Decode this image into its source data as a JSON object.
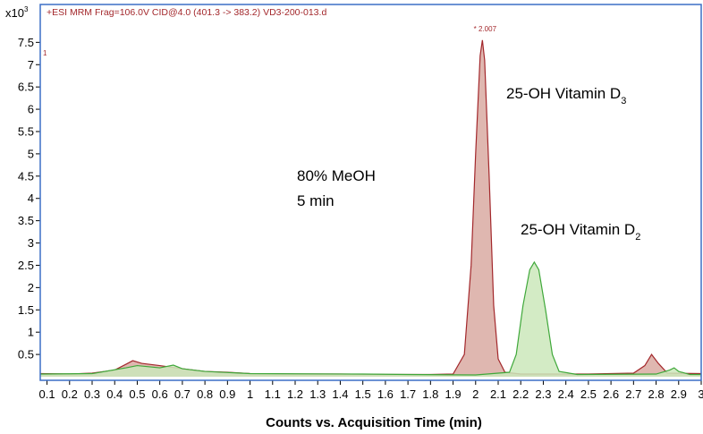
{
  "chart_data": {
    "type": "line",
    "subtitle": "+ESI MRM Frag=106.0V CID@4.0 (401.3 -> 383.2) VD3-200-013.d",
    "trace_label": "1",
    "y_multiplier": {
      "text": "x10",
      "superscript": "3"
    },
    "x_label": "Counts vs. Acquisition Time (min)",
    "peak_label": "* 2.007",
    "annotations": [
      {
        "text": "80% MeOH"
      },
      {
        "text": "5 min"
      },
      {
        "text": "25-OH Vitamin D",
        "subscript": "3"
      },
      {
        "text": "25-OH Vitamin D",
        "subscript": "2"
      }
    ],
    "xlim": [
      0.07,
      3.0
    ],
    "ylim": [
      -0.08,
      8.35
    ],
    "xticks": [
      0.1,
      0.2,
      0.3,
      0.4,
      0.5,
      0.6,
      0.7,
      0.8,
      0.9,
      1,
      1.1,
      1.2,
      1.3,
      1.4,
      1.5,
      1.6,
      1.7,
      1.8,
      1.9,
      2,
      2.1,
      2.2,
      2.3,
      2.4,
      2.5,
      2.6,
      2.7,
      2.8,
      2.9,
      3
    ],
    "yticks": [
      0.5,
      1,
      1.5,
      2,
      2.5,
      3,
      3.5,
      4,
      4.5,
      5,
      5.5,
      6,
      6.5,
      7,
      7.5
    ],
    "frame_color": "#3b6fc6",
    "series": [
      {
        "color": "#a3282c",
        "fill": "#d9aaa2",
        "x": [
          0.07,
          0.2,
          0.3,
          0.4,
          0.45,
          0.48,
          0.52,
          0.6,
          0.7,
          0.8,
          0.9,
          1.0,
          1.2,
          1.4,
          1.6,
          1.8,
          1.9,
          1.95,
          1.98,
          2.0,
          2.02,
          2.03,
          2.04,
          2.06,
          2.08,
          2.1,
          2.13,
          2.2,
          2.5,
          2.7,
          2.75,
          2.78,
          2.81,
          2.85,
          3.0
        ],
        "values": [
          0.07,
          0.06,
          0.08,
          0.15,
          0.28,
          0.36,
          0.3,
          0.25,
          0.18,
          0.12,
          0.1,
          0.07,
          0.06,
          0.06,
          0.05,
          0.05,
          0.06,
          0.5,
          2.5,
          5.0,
          7.2,
          7.55,
          7.1,
          4.5,
          1.6,
          0.4,
          0.1,
          0.06,
          0.06,
          0.08,
          0.25,
          0.5,
          0.3,
          0.08,
          0.07
        ]
      },
      {
        "color": "#3fa83a",
        "fill": "#cbe7bb",
        "x": [
          0.07,
          0.3,
          0.45,
          0.5,
          0.6,
          0.66,
          0.7,
          0.8,
          1.0,
          1.5,
          1.7,
          2.0,
          2.15,
          2.18,
          2.21,
          2.24,
          2.26,
          2.28,
          2.31,
          2.34,
          2.37,
          2.45,
          2.8,
          2.86,
          2.88,
          2.9,
          2.95,
          3.0
        ],
        "values": [
          0.06,
          0.07,
          0.2,
          0.25,
          0.2,
          0.26,
          0.18,
          0.12,
          0.07,
          0.06,
          0.05,
          0.04,
          0.1,
          0.5,
          1.6,
          2.4,
          2.57,
          2.4,
          1.5,
          0.5,
          0.12,
          0.05,
          0.06,
          0.15,
          0.2,
          0.12,
          0.05,
          0.05
        ]
      }
    ]
  }
}
